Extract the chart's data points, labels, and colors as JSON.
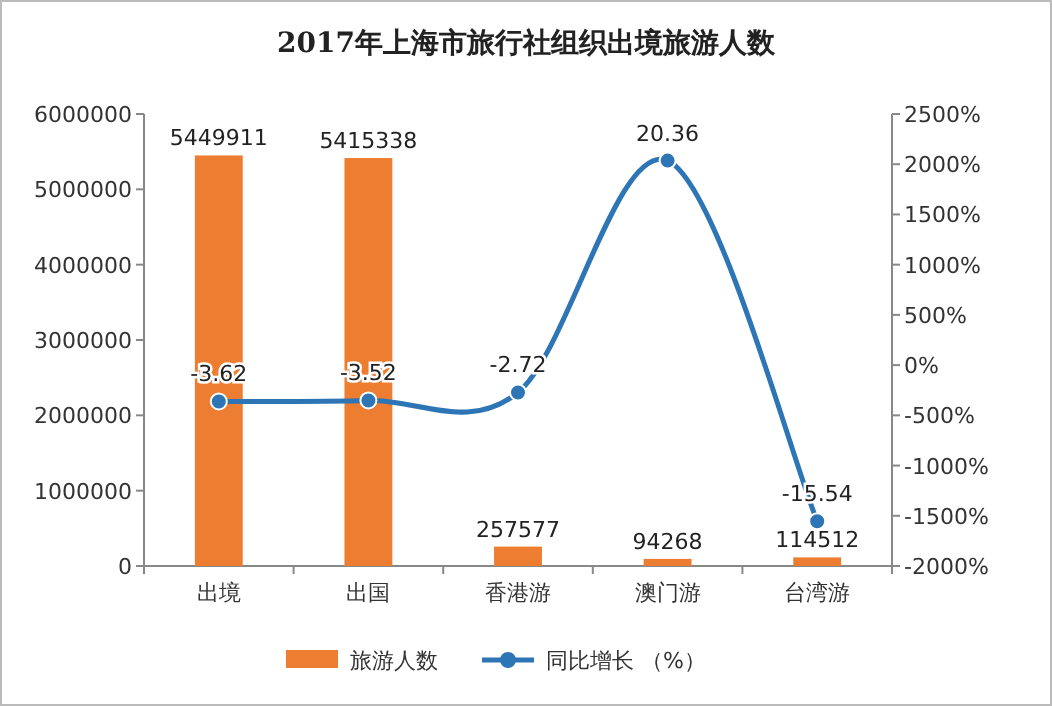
{
  "chart_data": {
    "type": "bar",
    "title": "2017年上海市旅行社组织出境旅游人数",
    "categories": [
      "出境",
      "出国",
      "香港游",
      "澳门游",
      "台湾游"
    ],
    "series": [
      {
        "name": "旅游人数",
        "color": "#ed7d31",
        "values": [
          5449911,
          5415338,
          257577,
          94268,
          114512
        ],
        "value_labels": [
          "5449911",
          "5415338",
          "257577",
          "94268",
          "114512"
        ]
      },
      {
        "name": "同比增长 （%）",
        "type": "line",
        "axis": "y2",
        "color": "#2e75b6",
        "marker": "circle",
        "values": [
          -3.62,
          -3.52,
          -2.72,
          20.36,
          -15.54
        ],
        "value_labels": [
          "-3.62",
          "-3.52",
          "-2.72",
          "20.36",
          "-15.54"
        ]
      }
    ],
    "ylim": [
      0,
      6000000
    ],
    "yticks": [
      0,
      1000000,
      2000000,
      3000000,
      4000000,
      5000000,
      6000000
    ],
    "y2lim": [
      -20,
      25
    ],
    "y2ticks": [
      {
        "value": -20,
        "label": "-2000%"
      },
      {
        "value": -15,
        "label": "-1500%"
      },
      {
        "value": -10,
        "label": "-1000%"
      },
      {
        "value": -5,
        "label": "-500%"
      },
      {
        "value": 0,
        "label": "0%"
      },
      {
        "value": 5,
        "label": "500%"
      },
      {
        "value": 10,
        "label": "1000%"
      },
      {
        "value": 15,
        "label": "1500%"
      },
      {
        "value": 20,
        "label": "2000%"
      },
      {
        "value": 25,
        "label": "2500%"
      }
    ],
    "legend": "bottom",
    "grid": false
  }
}
